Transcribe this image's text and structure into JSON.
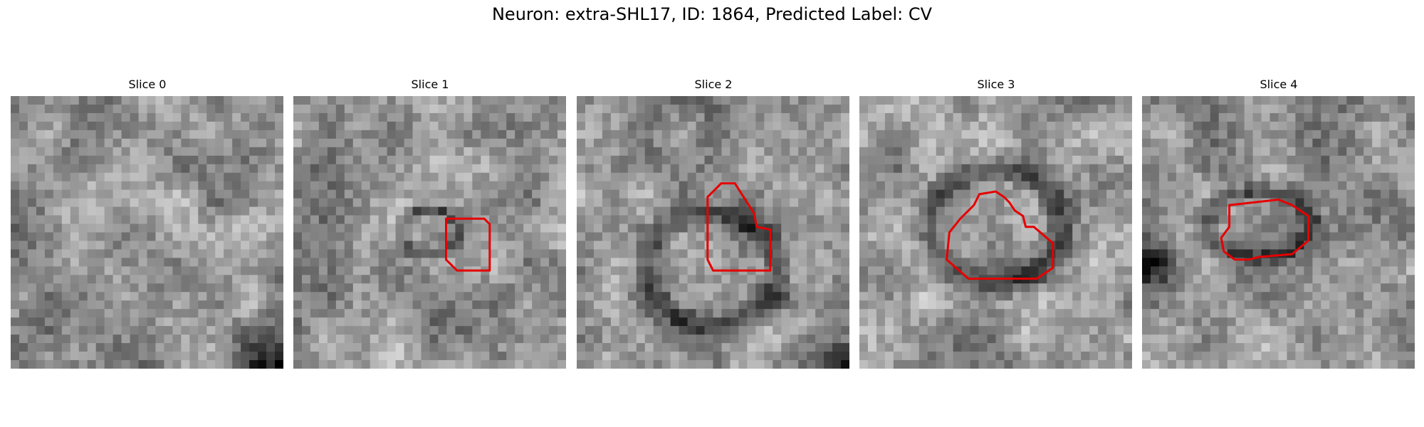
{
  "figure": {
    "title": "Neuron: extra-SHL17, ID: 1864, Predicted Label: CV",
    "contour_color": "#e60000"
  },
  "panels": [
    {
      "title": "Slice 0",
      "seed": 11,
      "ring": null,
      "dark_corner": "bottom-right",
      "contour": []
    },
    {
      "title": "Slice 1",
      "seed": 23,
      "ring": [
        0.5,
        0.5,
        0.2,
        0.16
      ],
      "contour": [
        [
          0.56,
          0.45
        ],
        [
          0.7,
          0.45
        ],
        [
          0.72,
          0.47
        ],
        [
          0.72,
          0.64
        ],
        [
          0.6,
          0.64
        ],
        [
          0.56,
          0.6
        ]
      ]
    },
    {
      "title": "Slice 2",
      "seed": 37,
      "ring": [
        0.5,
        0.64,
        0.45,
        0.4
      ],
      "dark_corner": "bottom-right",
      "contour": [
        [
          0.49,
          0.36
        ],
        [
          0.53,
          0.32
        ],
        [
          0.58,
          0.32
        ],
        [
          0.65,
          0.43
        ],
        [
          0.66,
          0.48
        ],
        [
          0.71,
          0.49
        ],
        [
          0.71,
          0.64
        ],
        [
          0.5,
          0.64
        ],
        [
          0.48,
          0.6
        ],
        [
          0.48,
          0.37
        ]
      ]
    },
    {
      "title": "Slice 3",
      "seed": 41,
      "ring": [
        0.5,
        0.48,
        0.46,
        0.4
      ],
      "contour": [
        [
          0.37,
          0.45
        ],
        [
          0.42,
          0.4
        ],
        [
          0.44,
          0.36
        ],
        [
          0.5,
          0.35
        ],
        [
          0.53,
          0.37
        ],
        [
          0.55,
          0.39
        ],
        [
          0.57,
          0.42
        ],
        [
          0.6,
          0.44
        ],
        [
          0.61,
          0.48
        ],
        [
          0.64,
          0.48
        ],
        [
          0.71,
          0.54
        ],
        [
          0.71,
          0.63
        ],
        [
          0.65,
          0.67
        ],
        [
          0.4,
          0.67
        ],
        [
          0.32,
          0.6
        ],
        [
          0.33,
          0.5
        ]
      ]
    },
    {
      "title": "Slice 4",
      "seed": 53,
      "ring": [
        0.43,
        0.47,
        0.36,
        0.23
      ],
      "dark_side": "left",
      "contour": [
        [
          0.32,
          0.4
        ],
        [
          0.5,
          0.38
        ],
        [
          0.55,
          0.4
        ],
        [
          0.61,
          0.44
        ],
        [
          0.61,
          0.53
        ],
        [
          0.55,
          0.58
        ],
        [
          0.43,
          0.59
        ],
        [
          0.39,
          0.6
        ],
        [
          0.34,
          0.6
        ],
        [
          0.3,
          0.57
        ],
        [
          0.29,
          0.52
        ],
        [
          0.32,
          0.48
        ],
        [
          0.32,
          0.4
        ]
      ]
    }
  ]
}
